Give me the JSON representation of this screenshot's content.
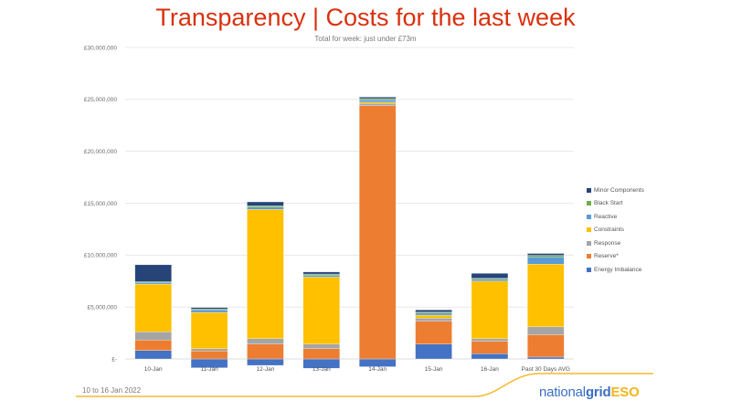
{
  "header": {
    "title": "Transparency | Costs for the last week",
    "subtitle": "Total for week: just under £73m"
  },
  "footer": {
    "date_range": "10 to 16 Jan 2022",
    "logo": {
      "part1": "national",
      "part2": "grid",
      "part3": "ESO"
    }
  },
  "chart_data": {
    "type": "bar",
    "stacked": true,
    "title": "Transparency | Costs for the last week",
    "subtitle": "Total for week: just under £73m",
    "xlabel": "",
    "ylabel": "",
    "ylim": [
      0,
      30000000
    ],
    "yticks": [
      0,
      5000000,
      10000000,
      15000000,
      20000000,
      25000000,
      30000000
    ],
    "ytick_labels": [
      "£-",
      "£5,000,000",
      "£10,000,000",
      "£15,000,000",
      "£20,000,000",
      "£25,000,000",
      "£30,000,000"
    ],
    "grid": true,
    "legend_position": "right",
    "categories": [
      "10-Jan",
      "11-Jan",
      "12-Jan",
      "13-Jan",
      "14-Jan",
      "15-Jan",
      "16-Jan",
      "Past 30 Days AVG"
    ],
    "series": [
      {
        "name": "Energy Imbalance",
        "color": "#4472c4",
        "values": [
          820000,
          -850000,
          -620000,
          -900000,
          -750000,
          1430000,
          500000,
          180000
        ]
      },
      {
        "name": "Reserve*",
        "color": "#ed7d31",
        "values": [
          1000000,
          760000,
          1430000,
          990000,
          24390000,
          2200000,
          1200000,
          2150000
        ]
      },
      {
        "name": "Response",
        "color": "#a5a5a5",
        "values": [
          790000,
          230000,
          530000,
          440000,
          210000,
          300000,
          260000,
          760000
        ]
      },
      {
        "name": "Constraints",
        "color": "#ffc000",
        "values": [
          4600000,
          3490000,
          12440000,
          6460000,
          140000,
          290000,
          5540000,
          6040000
        ]
      },
      {
        "name": "Reactive",
        "color": "#5b9bd5",
        "values": [
          150000,
          240000,
          230000,
          180000,
          230000,
          200000,
          180000,
          700000
        ]
      },
      {
        "name": "Black Start",
        "color": "#70ad47",
        "values": [
          90000,
          90000,
          120000,
          110000,
          110000,
          90000,
          90000,
          150000
        ]
      },
      {
        "name": "Minor Components",
        "color": "#264478",
        "values": [
          1620000,
          140000,
          380000,
          200000,
          150000,
          210000,
          470000,
          180000
        ]
      }
    ],
    "legend_order": [
      "Minor Components",
      "Black Start",
      "Reactive",
      "Constraints",
      "Response",
      "Reserve*",
      "Energy Imbalance"
    ]
  }
}
